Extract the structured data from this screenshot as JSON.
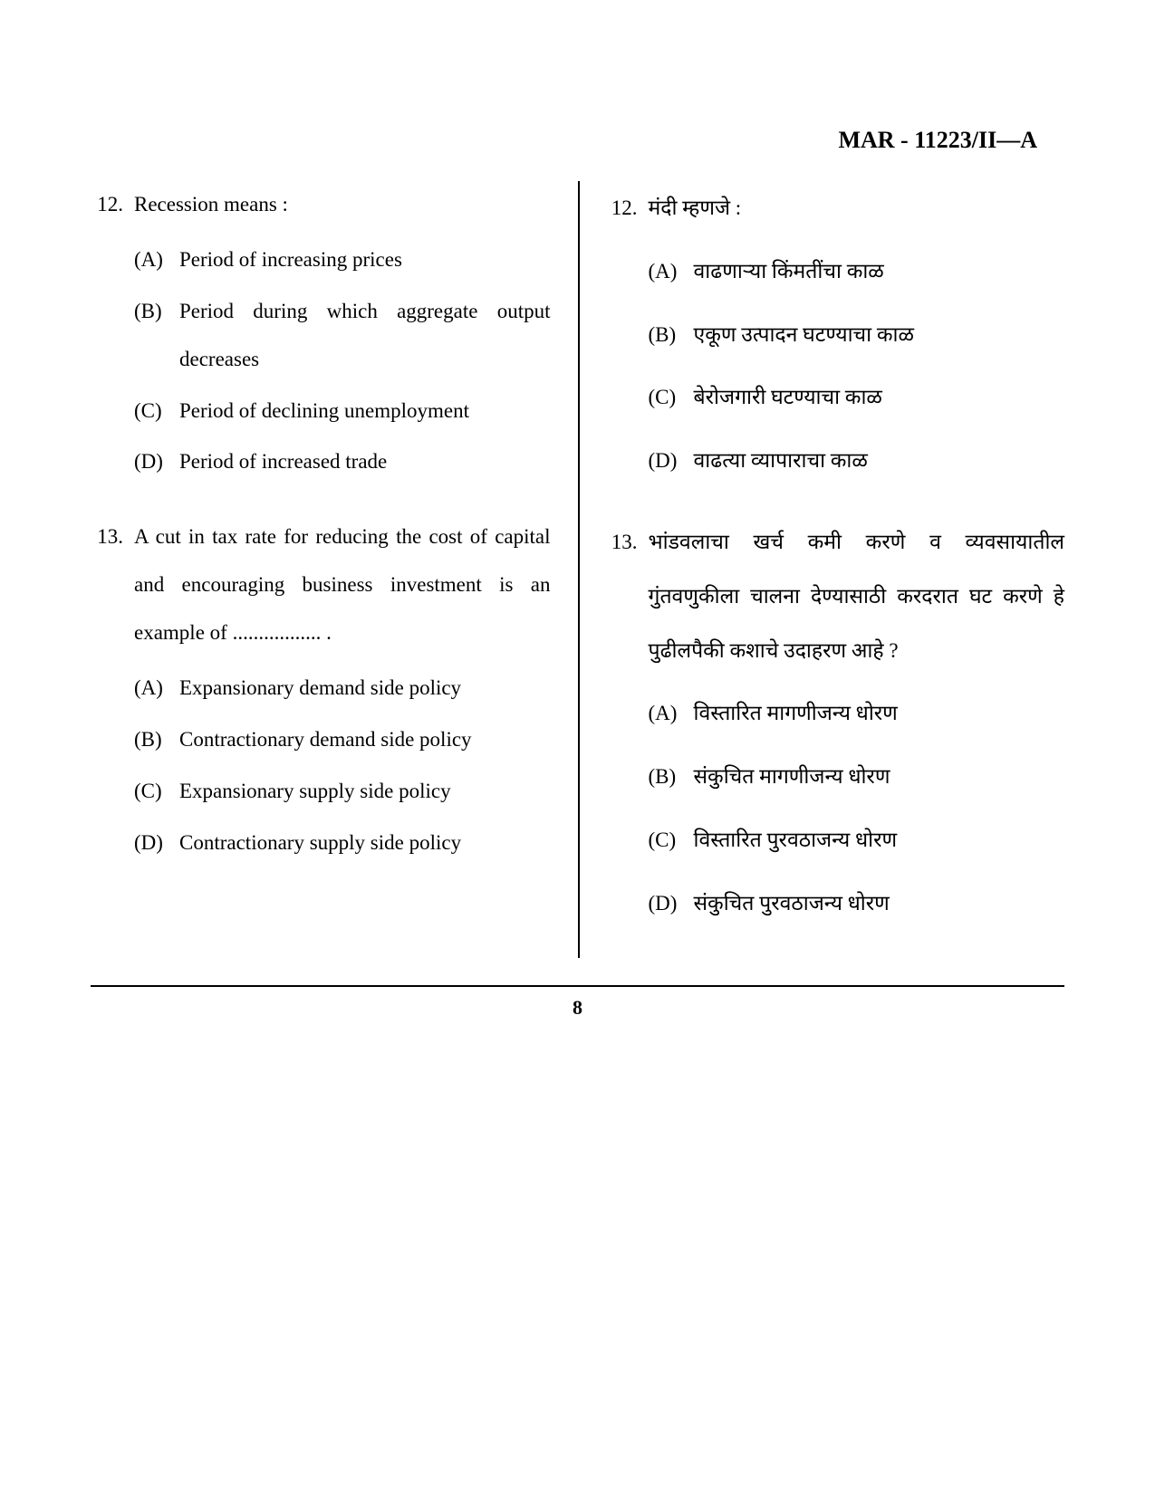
{
  "header": "MAR - 11223/II—A",
  "page_number": "8",
  "left": {
    "questions": [
      {
        "num": "12.",
        "stem": "Recession means :",
        "options": [
          {
            "label": "(A)",
            "text": "Period of increasing prices"
          },
          {
            "label": "(B)",
            "text": "Period during which aggregate output decreases"
          },
          {
            "label": "(C)",
            "text": "Period of declining unemploy­ment"
          },
          {
            "label": "(D)",
            "text": "Period of increased trade"
          }
        ]
      },
      {
        "num": "13.",
        "stem": "A cut in tax rate for reducing the cost of capital and encouraging business investment is an example of ................. .",
        "options": [
          {
            "label": "(A)",
            "text": "Expansionary demand side policy"
          },
          {
            "label": "(B)",
            "text": "Contractionary demand side policy"
          },
          {
            "label": "(C)",
            "text": "Expansionary supply side policy"
          },
          {
            "label": "(D)",
            "text": "Contractionary supply side policy"
          }
        ]
      }
    ]
  },
  "right": {
    "questions": [
      {
        "num": "12.",
        "stem": "मंदी म्हणजे :",
        "options": [
          {
            "label": "(A)",
            "text": "वाढणाऱ्या किंमतींचा काळ"
          },
          {
            "label": "(B)",
            "text": "एकूण उत्पादन घटण्याचा काळ"
          },
          {
            "label": "(C)",
            "text": "बेरोजगारी घटण्याचा काळ"
          },
          {
            "label": "(D)",
            "text": "वाढत्या व्यापाराचा काळ"
          }
        ]
      },
      {
        "num": "13.",
        "stem": "भांडवलाचा खर्च कमी करणे व व्यवसायातील गुंतवणुकीला चालना देण्यासाठी करदरात घट करणे हे पुढीलपैकी कशाचे उदाहरण आहे ?",
        "options": [
          {
            "label": "(A)",
            "text": "विस्तारित मागणीजन्य धोरण"
          },
          {
            "label": "(B)",
            "text": "संकुचित मागणीजन्य धोरण"
          },
          {
            "label": "(C)",
            "text": "विस्तारित पुरवठाजन्य धोरण"
          },
          {
            "label": "(D)",
            "text": "संकुचित पुरवठाजन्य धोरण"
          }
        ]
      }
    ]
  }
}
